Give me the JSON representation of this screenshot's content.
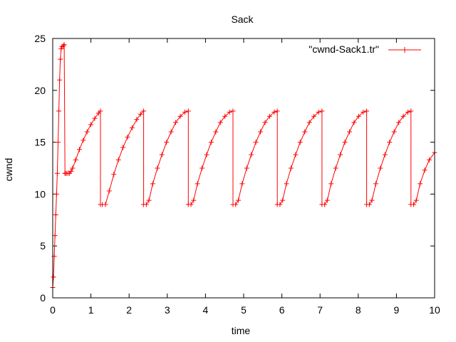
{
  "chart_data": {
    "type": "line",
    "title": "Sack",
    "xlabel": "time",
    "ylabel": "cwnd",
    "xlim": [
      0,
      10
    ],
    "ylim": [
      0,
      25
    ],
    "xticks": [
      "0",
      "1",
      "2",
      "3",
      "4",
      "5",
      "6",
      "7",
      "8",
      "9",
      "10"
    ],
    "yticks": [
      "0",
      "5",
      "10",
      "15",
      "20",
      "25"
    ],
    "grid": false,
    "legend_position": "top-right",
    "series": [
      {
        "name": "\"cwnd-Sack1.tr\"",
        "color": "#ff0000",
        "marker": "plus",
        "x": [
          0,
          0.02,
          0.04,
          0.06,
          0.08,
          0.1,
          0.12,
          0.14,
          0.16,
          0.18,
          0.2,
          0.22,
          0.24,
          0.28,
          0.3,
          0.32,
          0.33,
          0.36,
          0.4,
          0.44,
          0.48,
          0.52,
          0.6,
          0.7,
          0.8,
          0.9,
          1.0,
          1.1,
          1.2,
          1.25,
          1.25,
          1.3,
          1.38,
          1.48,
          1.6,
          1.72,
          1.84,
          1.96,
          2.08,
          2.2,
          2.3,
          2.38,
          2.38,
          2.45,
          2.52,
          2.62,
          2.74,
          2.86,
          2.98,
          3.1,
          3.22,
          3.34,
          3.46,
          3.55,
          3.55,
          3.62,
          3.69,
          3.79,
          3.91,
          4.03,
          4.15,
          4.27,
          4.39,
          4.51,
          4.63,
          4.72,
          4.72,
          4.79,
          4.86,
          4.96,
          5.08,
          5.2,
          5.32,
          5.44,
          5.56,
          5.68,
          5.8,
          5.88,
          5.88,
          5.95,
          6.02,
          6.12,
          6.24,
          6.36,
          6.48,
          6.6,
          6.72,
          6.84,
          6.96,
          7.05,
          7.05,
          7.12,
          7.19,
          7.29,
          7.41,
          7.53,
          7.65,
          7.77,
          7.89,
          8.01,
          8.13,
          8.22,
          8.22,
          8.29,
          8.36,
          8.46,
          8.58,
          8.7,
          8.82,
          8.94,
          9.06,
          9.18,
          9.3,
          9.38,
          9.38,
          9.45,
          9.52,
          9.62,
          9.74,
          9.86,
          10.0
        ],
        "y": [
          1,
          2,
          4,
          6,
          8,
          10,
          12,
          15,
          18,
          21,
          23,
          24,
          24.2,
          24.3,
          24.4,
          12,
          12,
          12,
          12,
          12,
          12.2,
          12.5,
          13.3,
          14.3,
          15.2,
          16.0,
          16.7,
          17.3,
          17.8,
          18.0,
          9,
          9,
          9,
          10.3,
          11.9,
          13.3,
          14.5,
          15.5,
          16.4,
          17.2,
          17.7,
          18.0,
          9,
          9,
          9.4,
          11.0,
          12.5,
          13.8,
          15.0,
          16.0,
          16.9,
          17.5,
          17.9,
          18.0,
          9,
          9,
          9.4,
          11.0,
          12.5,
          13.8,
          15.0,
          16.0,
          16.9,
          17.5,
          17.9,
          18.0,
          9,
          9,
          9.4,
          11.0,
          12.5,
          13.8,
          15.0,
          16.0,
          16.9,
          17.5,
          17.9,
          18.0,
          9,
          9,
          9.4,
          11.0,
          12.5,
          13.8,
          15.0,
          16.0,
          16.9,
          17.5,
          17.9,
          18.0,
          9,
          9,
          9.4,
          11.0,
          12.5,
          13.8,
          15.0,
          16.0,
          16.9,
          17.5,
          17.9,
          18.0,
          9,
          9,
          9.4,
          11.0,
          12.5,
          13.8,
          15.0,
          16.0,
          16.9,
          17.5,
          17.9,
          18.0,
          9,
          9,
          9.4,
          11.0,
          12.3,
          13.3,
          14.0
        ]
      }
    ]
  }
}
